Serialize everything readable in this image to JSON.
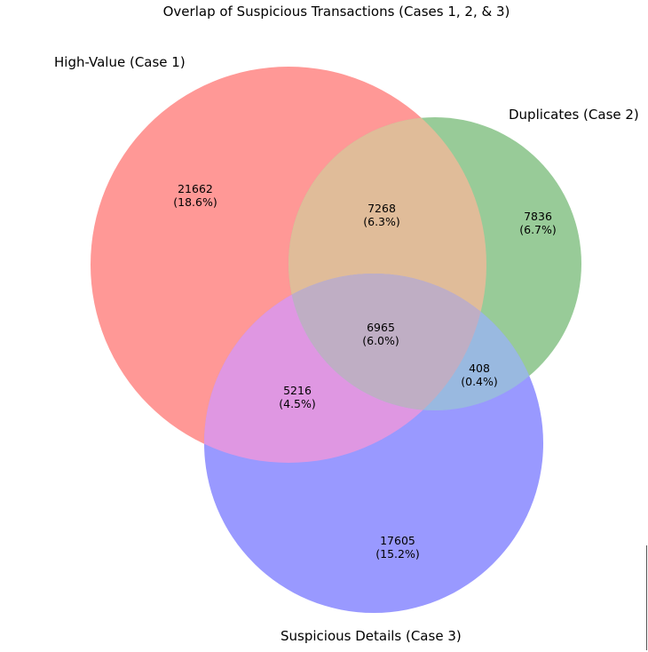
{
  "title": "Overlap of Suspicious Transactions (Cases 1, 2, & 3)",
  "sets": [
    {
      "key": "case1",
      "label": "High-Value (Case 1)",
      "color": "#ff0000"
    },
    {
      "key": "case2",
      "label": "Duplicates (Case 2)",
      "color": "#008000"
    },
    {
      "key": "case3",
      "label": "Suspicious Details (Case 3)",
      "color": "#0000ff"
    }
  ],
  "regions": {
    "only_1": {
      "count": "21662",
      "pct": "(18.6%)"
    },
    "only_2": {
      "count": "7836",
      "pct": "(6.7%)"
    },
    "only_3": {
      "count": "17605",
      "pct": "(15.2%)"
    },
    "r_1_2": {
      "count": "7268",
      "pct": "(6.3%)"
    },
    "r_1_3": {
      "count": "5216",
      "pct": "(4.5%)"
    },
    "r_2_3": {
      "count": "408",
      "pct": "(0.4%)"
    },
    "r_1_2_3": {
      "count": "6965",
      "pct": "(6.0%)"
    }
  }
}
